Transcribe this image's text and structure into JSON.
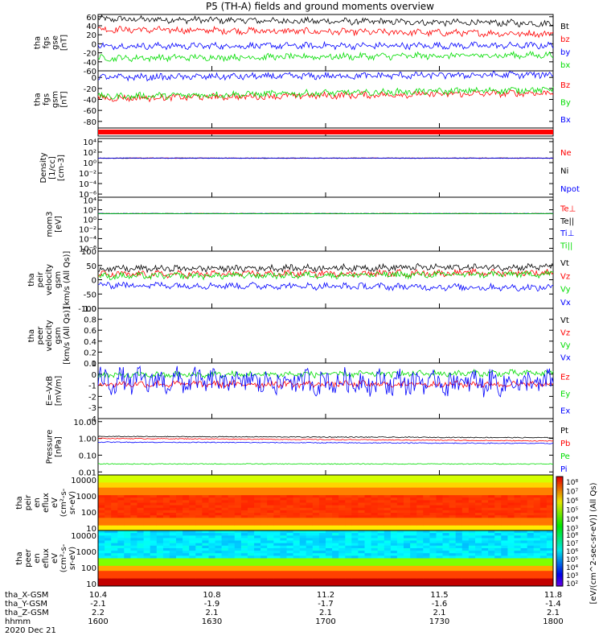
{
  "title": "P5 (TH-A) fields and ground moments overview",
  "colors": {
    "black": "#000000",
    "red": "#ff0000",
    "green": "#00dd00",
    "blue": "#0000ff"
  },
  "chart_data": [
    {
      "type": "line",
      "ylabel": [
        "tha",
        "fgs",
        "gse",
        "[nT]"
      ],
      "ylim": [
        -60,
        65
      ],
      "yticks": [
        "60",
        "40",
        "20",
        "0",
        "-20",
        "-40",
        "-60"
      ],
      "ytick_values": [
        60,
        40,
        20,
        0,
        -20,
        -40,
        -60
      ],
      "series": [
        {
          "name": "Bt",
          "color": "black",
          "level": [
            55,
            45
          ]
        },
        {
          "name": "bz",
          "color": "red",
          "level": [
            32,
            22
          ]
        },
        {
          "name": "by",
          "color": "blue",
          "level": [
            -5,
            -4
          ]
        },
        {
          "name": "bx",
          "color": "green",
          "level": [
            -32,
            -25
          ]
        }
      ]
    },
    {
      "type": "line",
      "ylabel": [
        "tha",
        "fgs",
        "gsm",
        "[nT]"
      ],
      "ylim": [
        -92,
        12
      ],
      "yticks": [
        "0",
        "-20",
        "-40",
        "-60",
        "-80"
      ],
      "ytick_values": [
        0,
        -20,
        -40,
        -60,
        -80
      ],
      "series": [
        {
          "name": "Bz",
          "color": "red",
          "level": [
            -38,
            -28
          ]
        },
        {
          "name": "By",
          "color": "green",
          "level": [
            -35,
            -22
          ]
        },
        {
          "name": "Bx",
          "color": "blue",
          "level": [
            0,
            5
          ]
        }
      ]
    },
    {
      "type": "bar",
      "ylabel": []
    },
    {
      "type": "line",
      "log": true,
      "ylabel": [
        "Density",
        "[1/cc]",
        "[cm-3]"
      ],
      "yticks": [
        "10⁴",
        "10²",
        "10⁰",
        "10⁻²",
        "10⁻⁴",
        "10⁻⁶"
      ],
      "ytick_values": [
        4,
        2,
        0,
        -2,
        -4,
        -6
      ],
      "series": [
        {
          "name": "Ne",
          "color": "red"
        },
        {
          "name": "Ni",
          "color": "black"
        },
        {
          "name": "Npot",
          "color": "blue"
        }
      ]
    },
    {
      "type": "line",
      "log": true,
      "ylabel": [
        "mom3",
        "[eV]"
      ],
      "yticks": [
        "10⁴",
        "10²",
        "10⁰",
        "10⁻²",
        "10⁻⁴",
        "10⁻⁶"
      ],
      "ytick_values": [
        4,
        2,
        0,
        -2,
        -4,
        -6
      ],
      "series": [
        {
          "name": "Te⊥",
          "color": "red"
        },
        {
          "name": "Te||",
          "color": "black"
        },
        {
          "name": "Ti⊥",
          "color": "blue"
        },
        {
          "name": "Ti||",
          "color": "green"
        }
      ]
    },
    {
      "type": "line",
      "ylabel": [
        "tha",
        "peir",
        "velocity",
        "gsm",
        "[km/s (All Qs)]"
      ],
      "ylim": [
        -100,
        100
      ],
      "yticks": [
        "100",
        "50",
        "0",
        "-50",
        "-100"
      ],
      "ytick_values": [
        100,
        50,
        0,
        -50,
        -100
      ],
      "series": [
        {
          "name": "Vt",
          "color": "black",
          "level": [
            38,
            45
          ]
        },
        {
          "name": "Vz",
          "color": "red",
          "level": [
            18,
            25
          ]
        },
        {
          "name": "Vy",
          "color": "green",
          "level": [
            12,
            20
          ]
        },
        {
          "name": "Vx",
          "color": "blue",
          "level": [
            -18,
            -28
          ]
        }
      ]
    },
    {
      "type": "line",
      "ylabel": [
        "tha",
        "peer",
        "velocity",
        "gsm",
        "[km/s (All Qs)]"
      ],
      "ylim": [
        0,
        1
      ],
      "yticks": [
        "1.0",
        "0.8",
        "0.6",
        "0.4",
        "0.2",
        "0.0"
      ],
      "ytick_values": [
        1,
        0.8,
        0.6,
        0.4,
        0.2,
        0
      ],
      "series": [
        {
          "name": "Vt",
          "color": "black"
        },
        {
          "name": "Vz",
          "color": "red"
        },
        {
          "name": "Vy",
          "color": "green"
        },
        {
          "name": "Vx",
          "color": "blue"
        }
      ]
    },
    {
      "type": "line",
      "ylabel": [
        "E=-VxB",
        "[mV/m]"
      ],
      "ylim": [
        -4,
        1
      ],
      "yticks": [
        "1",
        "0",
        "-1",
        "-2",
        "-3",
        "-4"
      ],
      "ytick_values": [
        1,
        0,
        -1,
        -2,
        -3,
        -4
      ],
      "series": [
        {
          "name": "Ez",
          "color": "red",
          "level": [
            -0.9,
            -0.9
          ]
        },
        {
          "name": "Ey",
          "color": "green",
          "level": [
            -0.1,
            0.1
          ]
        },
        {
          "name": "Ex",
          "color": "blue",
          "level": [
            -0.6,
            -0.8
          ]
        }
      ]
    },
    {
      "type": "line",
      "log": true,
      "ylabel": [
        "Pressure",
        "[nPa]"
      ],
      "yticks": [
        "10.00",
        "1.00",
        "0.10",
        "0.01"
      ],
      "ytick_values": [
        1,
        0,
        -1,
        -2
      ],
      "series": [
        {
          "name": "Pt",
          "color": "black",
          "level": [
            1.3,
            1.1
          ]
        },
        {
          "name": "Pb",
          "color": "red",
          "level": [
            1.0,
            0.7
          ]
        },
        {
          "name": "Pe",
          "color": "green",
          "level": [
            0.03,
            0.03
          ]
        },
        {
          "name": "Pi",
          "color": "blue",
          "level": [
            0.6,
            0.5
          ]
        }
      ]
    },
    {
      "type": "heatmap",
      "ylabel": [
        "tha",
        "peir",
        "en",
        "eflux",
        "eV",
        "(cm²-s-",
        "sr-eV)"
      ],
      "yticks": [
        "10000",
        "1000",
        "100",
        "10"
      ],
      "ytick_values": [
        4,
        3,
        2,
        1
      ]
    },
    {
      "type": "heatmap",
      "ylabel": [
        "tha",
        "peer",
        "en",
        "eflux",
        "eV",
        "(cm²-s-",
        "sr-eV)"
      ],
      "yticks": [
        "10000",
        "1000",
        "100",
        "10"
      ],
      "ytick_values": [
        4,
        3,
        2,
        1
      ]
    }
  ],
  "colorbar": {
    "upper_labels": [
      "10⁸",
      "10⁷",
      "10⁶",
      "10⁵",
      "10⁴",
      "10³"
    ],
    "lower_labels": [
      "10⁸",
      "10⁷",
      "10⁶",
      "10⁵",
      "10⁴",
      "10³",
      "10²"
    ],
    "label": "[eV/(cm^2-sec-sr-eV)] (All Qs)"
  },
  "x_axis": {
    "rows": [
      {
        "name": "tha_X-GSM",
        "values": [
          "10.4",
          "10.8",
          "11.2",
          "11.5",
          "11.8"
        ]
      },
      {
        "name": "tha_Y-GSM",
        "values": [
          "-2.1",
          "-1.9",
          "-1.7",
          "-1.6",
          "-1.4"
        ]
      },
      {
        "name": "tha_Z-GSM",
        "values": [
          "2.2",
          "2.1",
          "2.1",
          "2.1",
          "2.1"
        ]
      },
      {
        "name": "hhmm",
        "values": [
          "1600",
          "1630",
          "1700",
          "1730",
          "1800"
        ]
      }
    ],
    "date": "2020 Dec 21"
  }
}
